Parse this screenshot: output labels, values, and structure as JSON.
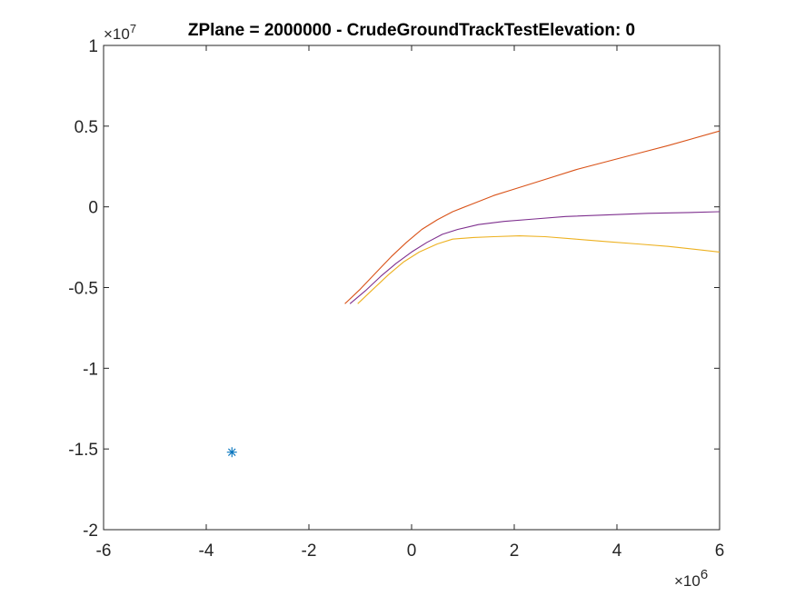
{
  "chart_data": {
    "type": "line",
    "title": "ZPlane = 2000000 - CrudeGroundTrackTestElevation: 0",
    "xlabel": "",
    "ylabel": "",
    "x_exponent_label": "×10",
    "x_exponent_power": "6",
    "y_exponent_label": "×10",
    "y_exponent_power": "7",
    "xlim": [
      -6000000,
      6000000
    ],
    "ylim": [
      -20000000,
      10000000
    ],
    "x_ticks": [
      -6000000,
      -4000000,
      -2000000,
      0,
      2000000,
      4000000,
      6000000
    ],
    "x_tick_labels": [
      "-6",
      "-4",
      "-2",
      "0",
      "2",
      "4",
      "6"
    ],
    "y_ticks": [
      -20000000,
      -15000000,
      -10000000,
      -5000000,
      0,
      5000000,
      10000000
    ],
    "y_tick_labels": [
      "-2",
      "-1.5",
      "-1",
      "-0.5",
      "0",
      "0.5",
      "1"
    ],
    "grid": false,
    "series": [
      {
        "color": "#D95319",
        "x": [
          -1300000,
          -1000000,
          -700000,
          -400000,
          -100000,
          200000,
          500000,
          800000,
          1200000,
          1600000,
          2000000,
          2600000,
          3200000,
          3800000,
          4400000,
          5000000,
          6000000
        ],
        "y": [
          -6000000,
          -5100000,
          -4100000,
          -3100000,
          -2200000,
          -1400000,
          -800000,
          -300000,
          200000,
          700000,
          1100000,
          1700000,
          2300000,
          2800000,
          3300000,
          3800000,
          4700000
        ]
      },
      {
        "color": "#7E2F8E",
        "x": [
          -1200000,
          -900000,
          -600000,
          -300000,
          0,
          300000,
          600000,
          900000,
          1300000,
          1800000,
          2400000,
          3000000,
          3800000,
          4600000,
          5400000,
          6000000
        ],
        "y": [
          -6000000,
          -5200000,
          -4300000,
          -3500000,
          -2800000,
          -2200000,
          -1700000,
          -1400000,
          -1100000,
          -900000,
          -750000,
          -600000,
          -500000,
          -400000,
          -350000,
          -300000
        ]
      },
      {
        "color": "#EDB120",
        "x": [
          -1050000,
          -750000,
          -450000,
          -150000,
          150000,
          500000,
          800000,
          1200000,
          1600000,
          2100000,
          2600000,
          3200000,
          3800000,
          4400000,
          5000000,
          6000000
        ],
        "y": [
          -6000000,
          -5100000,
          -4200000,
          -3400000,
          -2800000,
          -2300000,
          -2000000,
          -1900000,
          -1850000,
          -1800000,
          -1850000,
          -2000000,
          -2150000,
          -2300000,
          -2450000,
          -2800000
        ]
      },
      {
        "color": "#0072BD",
        "marker": "*",
        "x": [
          -3500000
        ],
        "y": [
          -15200000
        ]
      }
    ]
  }
}
